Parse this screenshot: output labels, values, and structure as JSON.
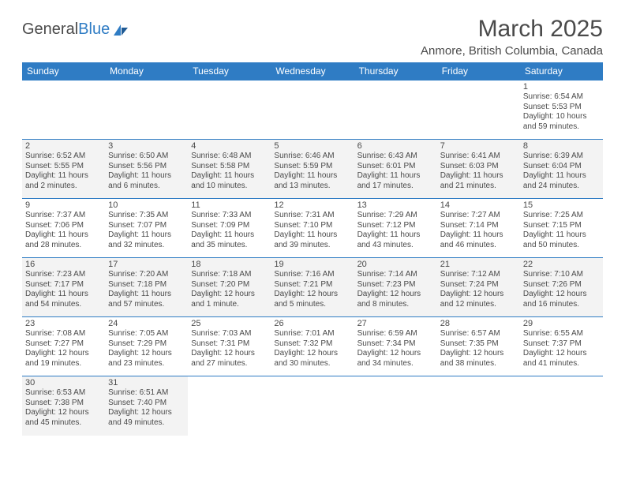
{
  "logo": {
    "text1": "General",
    "text2": "Blue"
  },
  "title": "March 2025",
  "location": "Anmore, British Columbia, Canada",
  "colors": {
    "header_bg": "#2f7cc4",
    "header_text": "#ffffff",
    "border": "#2f7cc4",
    "text": "#4a4a4a",
    "shaded": "#f3f3f3",
    "background": "#ffffff"
  },
  "typography": {
    "title_fontsize": 30,
    "location_fontsize": 15,
    "header_fontsize": 12,
    "daynum_fontsize": 11,
    "cell_fontsize": 10
  },
  "day_headers": [
    "Sunday",
    "Monday",
    "Tuesday",
    "Wednesday",
    "Thursday",
    "Friday",
    "Saturday"
  ],
  "weeks": [
    [
      {
        "empty": true
      },
      {
        "empty": true
      },
      {
        "empty": true
      },
      {
        "empty": true
      },
      {
        "empty": true
      },
      {
        "empty": true
      },
      {
        "day": "1",
        "sunrise": "Sunrise: 6:54 AM",
        "sunset": "Sunset: 5:53 PM",
        "daylight": "Daylight: 10 hours and 59 minutes.",
        "shaded": false
      }
    ],
    [
      {
        "day": "2",
        "sunrise": "Sunrise: 6:52 AM",
        "sunset": "Sunset: 5:55 PM",
        "daylight": "Daylight: 11 hours and 2 minutes.",
        "shaded": true
      },
      {
        "day": "3",
        "sunrise": "Sunrise: 6:50 AM",
        "sunset": "Sunset: 5:56 PM",
        "daylight": "Daylight: 11 hours and 6 minutes.",
        "shaded": true
      },
      {
        "day": "4",
        "sunrise": "Sunrise: 6:48 AM",
        "sunset": "Sunset: 5:58 PM",
        "daylight": "Daylight: 11 hours and 10 minutes.",
        "shaded": true
      },
      {
        "day": "5",
        "sunrise": "Sunrise: 6:46 AM",
        "sunset": "Sunset: 5:59 PM",
        "daylight": "Daylight: 11 hours and 13 minutes.",
        "shaded": true
      },
      {
        "day": "6",
        "sunrise": "Sunrise: 6:43 AM",
        "sunset": "Sunset: 6:01 PM",
        "daylight": "Daylight: 11 hours and 17 minutes.",
        "shaded": true
      },
      {
        "day": "7",
        "sunrise": "Sunrise: 6:41 AM",
        "sunset": "Sunset: 6:03 PM",
        "daylight": "Daylight: 11 hours and 21 minutes.",
        "shaded": true
      },
      {
        "day": "8",
        "sunrise": "Sunrise: 6:39 AM",
        "sunset": "Sunset: 6:04 PM",
        "daylight": "Daylight: 11 hours and 24 minutes.",
        "shaded": true
      }
    ],
    [
      {
        "day": "9",
        "sunrise": "Sunrise: 7:37 AM",
        "sunset": "Sunset: 7:06 PM",
        "daylight": "Daylight: 11 hours and 28 minutes.",
        "shaded": false
      },
      {
        "day": "10",
        "sunrise": "Sunrise: 7:35 AM",
        "sunset": "Sunset: 7:07 PM",
        "daylight": "Daylight: 11 hours and 32 minutes.",
        "shaded": false
      },
      {
        "day": "11",
        "sunrise": "Sunrise: 7:33 AM",
        "sunset": "Sunset: 7:09 PM",
        "daylight": "Daylight: 11 hours and 35 minutes.",
        "shaded": false
      },
      {
        "day": "12",
        "sunrise": "Sunrise: 7:31 AM",
        "sunset": "Sunset: 7:10 PM",
        "daylight": "Daylight: 11 hours and 39 minutes.",
        "shaded": false
      },
      {
        "day": "13",
        "sunrise": "Sunrise: 7:29 AM",
        "sunset": "Sunset: 7:12 PM",
        "daylight": "Daylight: 11 hours and 43 minutes.",
        "shaded": false
      },
      {
        "day": "14",
        "sunrise": "Sunrise: 7:27 AM",
        "sunset": "Sunset: 7:14 PM",
        "daylight": "Daylight: 11 hours and 46 minutes.",
        "shaded": false
      },
      {
        "day": "15",
        "sunrise": "Sunrise: 7:25 AM",
        "sunset": "Sunset: 7:15 PM",
        "daylight": "Daylight: 11 hours and 50 minutes.",
        "shaded": false
      }
    ],
    [
      {
        "day": "16",
        "sunrise": "Sunrise: 7:23 AM",
        "sunset": "Sunset: 7:17 PM",
        "daylight": "Daylight: 11 hours and 54 minutes.",
        "shaded": true
      },
      {
        "day": "17",
        "sunrise": "Sunrise: 7:20 AM",
        "sunset": "Sunset: 7:18 PM",
        "daylight": "Daylight: 11 hours and 57 minutes.",
        "shaded": true
      },
      {
        "day": "18",
        "sunrise": "Sunrise: 7:18 AM",
        "sunset": "Sunset: 7:20 PM",
        "daylight": "Daylight: 12 hours and 1 minute.",
        "shaded": true
      },
      {
        "day": "19",
        "sunrise": "Sunrise: 7:16 AM",
        "sunset": "Sunset: 7:21 PM",
        "daylight": "Daylight: 12 hours and 5 minutes.",
        "shaded": true
      },
      {
        "day": "20",
        "sunrise": "Sunrise: 7:14 AM",
        "sunset": "Sunset: 7:23 PM",
        "daylight": "Daylight: 12 hours and 8 minutes.",
        "shaded": true
      },
      {
        "day": "21",
        "sunrise": "Sunrise: 7:12 AM",
        "sunset": "Sunset: 7:24 PM",
        "daylight": "Daylight: 12 hours and 12 minutes.",
        "shaded": true
      },
      {
        "day": "22",
        "sunrise": "Sunrise: 7:10 AM",
        "sunset": "Sunset: 7:26 PM",
        "daylight": "Daylight: 12 hours and 16 minutes.",
        "shaded": true
      }
    ],
    [
      {
        "day": "23",
        "sunrise": "Sunrise: 7:08 AM",
        "sunset": "Sunset: 7:27 PM",
        "daylight": "Daylight: 12 hours and 19 minutes.",
        "shaded": false
      },
      {
        "day": "24",
        "sunrise": "Sunrise: 7:05 AM",
        "sunset": "Sunset: 7:29 PM",
        "daylight": "Daylight: 12 hours and 23 minutes.",
        "shaded": false
      },
      {
        "day": "25",
        "sunrise": "Sunrise: 7:03 AM",
        "sunset": "Sunset: 7:31 PM",
        "daylight": "Daylight: 12 hours and 27 minutes.",
        "shaded": false
      },
      {
        "day": "26",
        "sunrise": "Sunrise: 7:01 AM",
        "sunset": "Sunset: 7:32 PM",
        "daylight": "Daylight: 12 hours and 30 minutes.",
        "shaded": false
      },
      {
        "day": "27",
        "sunrise": "Sunrise: 6:59 AM",
        "sunset": "Sunset: 7:34 PM",
        "daylight": "Daylight: 12 hours and 34 minutes.",
        "shaded": false
      },
      {
        "day": "28",
        "sunrise": "Sunrise: 6:57 AM",
        "sunset": "Sunset: 7:35 PM",
        "daylight": "Daylight: 12 hours and 38 minutes.",
        "shaded": false
      },
      {
        "day": "29",
        "sunrise": "Sunrise: 6:55 AM",
        "sunset": "Sunset: 7:37 PM",
        "daylight": "Daylight: 12 hours and 41 minutes.",
        "shaded": false
      }
    ],
    [
      {
        "day": "30",
        "sunrise": "Sunrise: 6:53 AM",
        "sunset": "Sunset: 7:38 PM",
        "daylight": "Daylight: 12 hours and 45 minutes.",
        "shaded": true
      },
      {
        "day": "31",
        "sunrise": "Sunrise: 6:51 AM",
        "sunset": "Sunset: 7:40 PM",
        "daylight": "Daylight: 12 hours and 49 minutes.",
        "shaded": true
      },
      {
        "empty": true
      },
      {
        "empty": true
      },
      {
        "empty": true
      },
      {
        "empty": true
      },
      {
        "empty": true
      }
    ]
  ]
}
